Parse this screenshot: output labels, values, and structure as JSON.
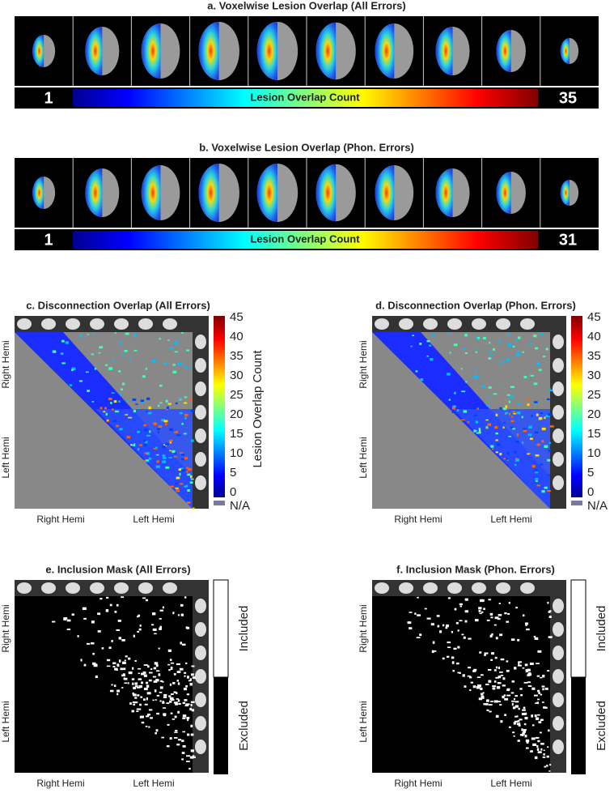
{
  "strips": [
    {
      "title": "a. Voxelwise Lesion Overlap (All Errors)",
      "min_label": "1",
      "bar_label": "Lesion Overlap Count",
      "max_label": "35"
    },
    {
      "title": "b. Voxelwise Lesion Overlap (Phon. Errors)",
      "min_label": "1",
      "bar_label": "Lesion Overlap Count",
      "max_label": "31"
    }
  ],
  "matrices": [
    {
      "title": "c. Disconnection Overlap (All Errors)",
      "ticks": [
        "45",
        "40",
        "35",
        "30",
        "25",
        "20",
        "15",
        "10",
        "5",
        "0",
        "N/A"
      ],
      "colorbar_label": "Lesion Overlap Count",
      "x_labels": [
        "Right Hemi",
        "Left Hemi"
      ],
      "y_labels": [
        "Right Hemi",
        "Left Hemi"
      ]
    },
    {
      "title": "d. Disconnection Overlap (Phon. Errors)",
      "ticks": [
        "45",
        "40",
        "35",
        "30",
        "25",
        "20",
        "15",
        "10",
        "5",
        "0",
        "N/A"
      ],
      "x_labels": [
        "Right Hemi",
        "Left Hemi"
      ],
      "y_labels": [
        "Right Hemi",
        "Left Hemi"
      ]
    },
    {
      "title": "e. Inclusion Mask (All Errors)",
      "mask_labels": [
        "Included",
        "Excluded"
      ],
      "x_labels": [
        "Right Hemi",
        "Left Hemi"
      ],
      "y_labels": [
        "Right Hemi",
        "Left Hemi"
      ]
    },
    {
      "title": "f. Inclusion Mask (Phon. Errors)",
      "mask_labels": [
        "Included",
        "Excluded"
      ],
      "x_labels": [
        "Right Hemi",
        "Left Hemi"
      ],
      "y_labels": [
        "Right Hemi",
        "Left Hemi"
      ]
    }
  ]
}
